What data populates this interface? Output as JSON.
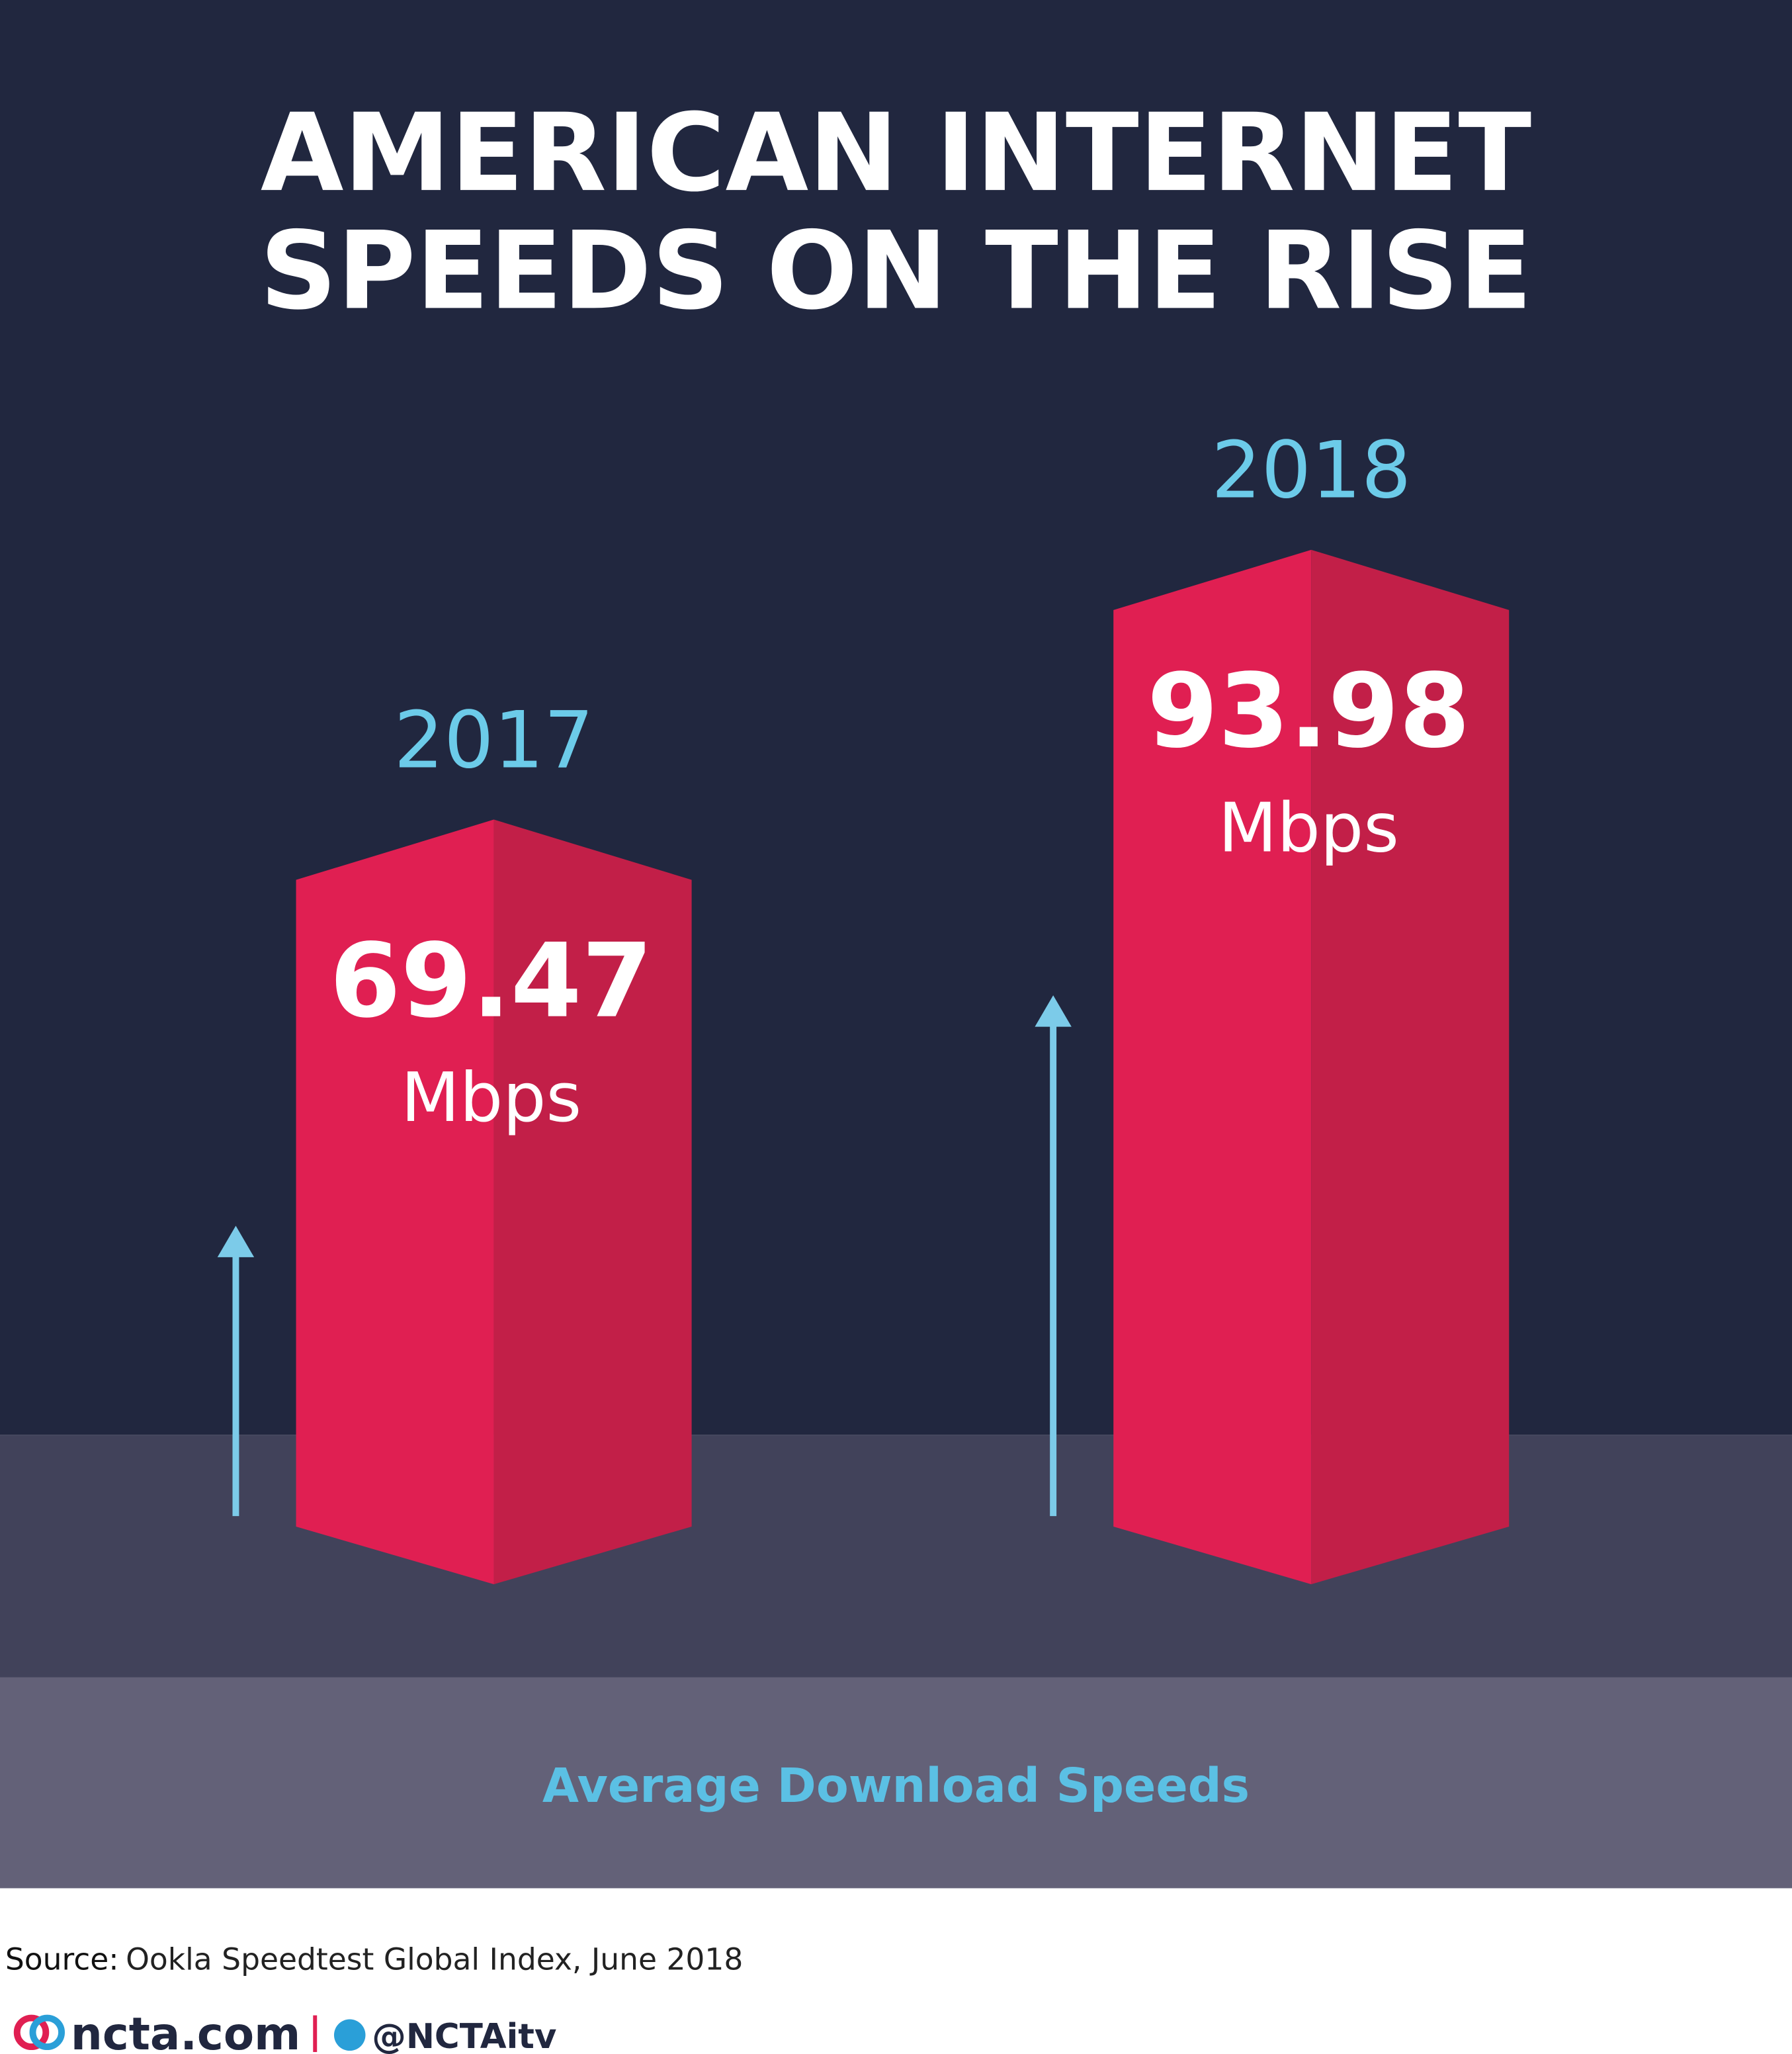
{
  "chart_data": {
    "type": "bar",
    "title_lines": [
      "AMERICAN INTERNET",
      "SPEEDS ON THE RISE"
    ],
    "categories": [
      "2017",
      "2018"
    ],
    "values": [
      69.47,
      93.98
    ],
    "unit": "Mbps",
    "caption": "Average Download Speeds",
    "colors": {
      "front": "#e01f52",
      "side": "#c21f48",
      "year": "#6ccbe9",
      "arrow": "#7ccbe9"
    }
  },
  "footer": {
    "source_label": "Source:",
    "source": "Ookla Speedtest Global Index, June 2018",
    "site": "ncta.com",
    "handle": "@NCTAitv"
  }
}
